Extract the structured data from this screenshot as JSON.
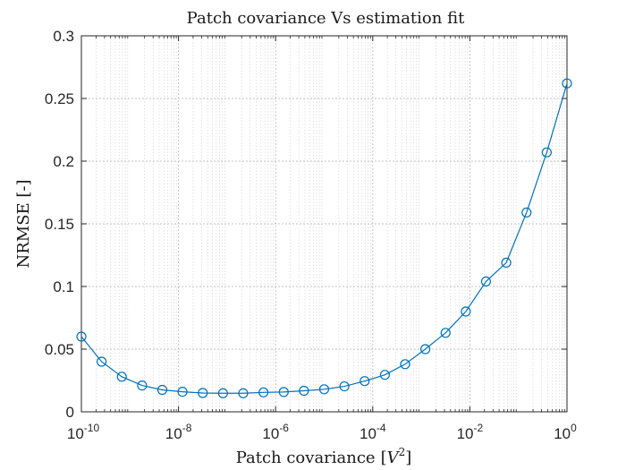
{
  "chart_data": {
    "type": "line",
    "title": "Patch covariance Vs estimation fit",
    "xlabel": "Patch covariance",
    "xlabel_unit_base": "V",
    "xlabel_unit_exp": "2",
    "ylabel": "NRMSE [-]",
    "xscale": "log",
    "xlim": [
      1e-10,
      1
    ],
    "ylim": [
      0,
      0.3
    ],
    "grid": true,
    "minor_grid_x": true,
    "x_ticks": [
      {
        "base": "10",
        "exp": "-10",
        "value": 1e-10
      },
      {
        "base": "10",
        "exp": "-8",
        "value": 1e-08
      },
      {
        "base": "10",
        "exp": "-6",
        "value": 1e-06
      },
      {
        "base": "10",
        "exp": "-4",
        "value": 0.0001
      },
      {
        "base": "10",
        "exp": "-2",
        "value": 0.01
      },
      {
        "base": "10",
        "exp": "0",
        "value": 1
      }
    ],
    "y_ticks": [
      {
        "label": "0",
        "value": 0
      },
      {
        "label": "0.05",
        "value": 0.05
      },
      {
        "label": "0.1",
        "value": 0.1
      },
      {
        "label": "0.15",
        "value": 0.15
      },
      {
        "label": "0.2",
        "value": 0.2
      },
      {
        "label": "0.25",
        "value": 0.25
      },
      {
        "label": "0.3",
        "value": 0.3
      }
    ],
    "series": [
      {
        "color": "#0072BD",
        "marker": "circle",
        "x": [
          1e-10,
          2.61e-10,
          6.81e-10,
          1.78e-09,
          4.64e-09,
          1.21e-08,
          3.16e-08,
          8.25e-08,
          2.15e-07,
          5.62e-07,
          1.47e-06,
          3.83e-06,
          1e-05,
          2.61e-05,
          6.81e-05,
          0.000178,
          0.000464,
          0.00121,
          0.00316,
          0.00825,
          0.0215,
          0.0562,
          0.147,
          0.383,
          1.0
        ],
        "y": [
          0.06,
          0.04,
          0.028,
          0.021,
          0.0175,
          0.016,
          0.015,
          0.0148,
          0.0148,
          0.0155,
          0.0158,
          0.0168,
          0.018,
          0.0203,
          0.0245,
          0.0295,
          0.038,
          0.05,
          0.063,
          0.08,
          0.104,
          0.119,
          0.159,
          0.207,
          0.262
        ]
      }
    ]
  }
}
